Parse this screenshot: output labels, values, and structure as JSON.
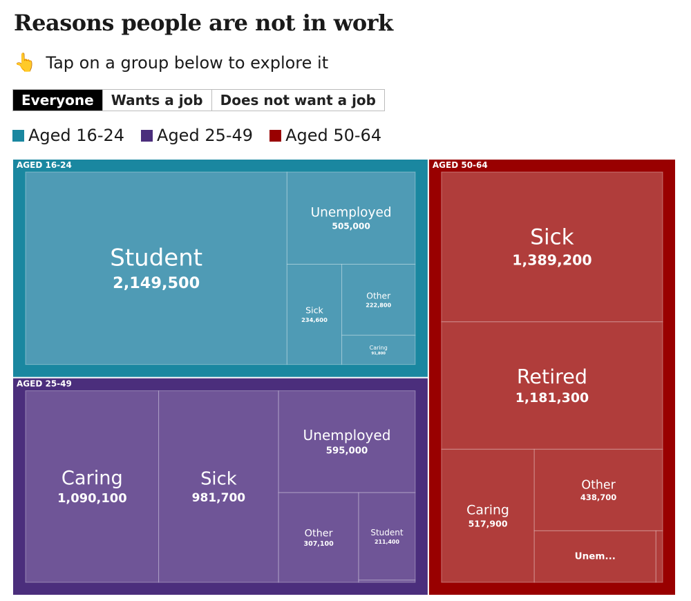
{
  "header": {
    "title": "Reasons people are not in work",
    "icon": "👆",
    "instruction": "Tap on a group below to explore it"
  },
  "filters": [
    "Everyone",
    "Wants a job",
    "Does not want a job"
  ],
  "chart_data": {
    "type": "treemap",
    "groups": [
      {
        "name": "Aged 16-24",
        "label": "AGED 16-24",
        "color": "#1a87a0",
        "cell_color": "#4f9bb5",
        "names": [
          "Student",
          "Unemployed",
          "Sick",
          "Other",
          "Caring"
        ],
        "values": [
          2149500,
          505000,
          234600,
          222800,
          91800
        ],
        "value_labels": [
          "2,149,500",
          "505,000",
          "234,600",
          "222,800",
          "91,800"
        ]
      },
      {
        "name": "Aged 25-49",
        "label": "AGED 25-49",
        "color": "#4b2e7c",
        "cell_color": "#6f5597",
        "names": [
          "Caring",
          "Sick",
          "Unemployed",
          "Other",
          "Student",
          null
        ],
        "values": [
          1090100,
          981700,
          595000,
          307100,
          211400,
          5300
        ],
        "value_labels": [
          "1,090,100",
          "981,700",
          "595,000",
          "307,100",
          "211,400",
          null
        ]
      },
      {
        "name": "Aged 50-64",
        "label": "AGED 50-64",
        "color": "#990000",
        "cell_color": "#b03d3b",
        "names": [
          "Sick",
          "Retired",
          "Caring",
          "Other",
          "Unem...",
          null
        ],
        "values": [
          1389200,
          1181300,
          517900,
          438700,
          263000,
          14500
        ],
        "value_labels": [
          "1,389,200",
          "1,181,300",
          "517,900",
          "438,700",
          null,
          null
        ]
      }
    ]
  }
}
